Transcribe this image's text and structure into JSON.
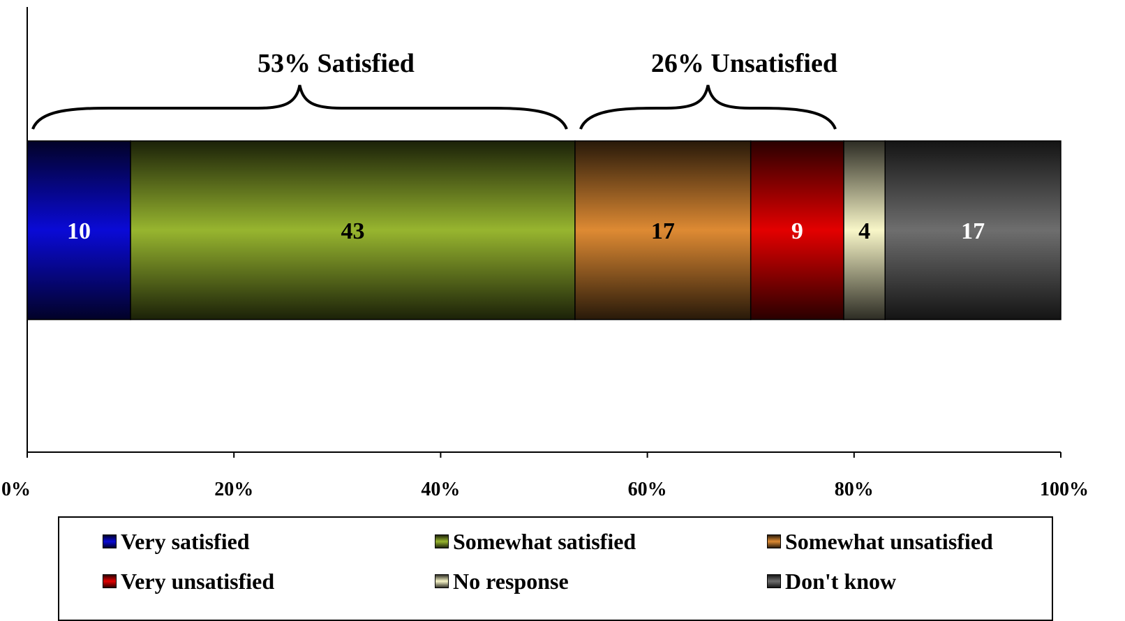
{
  "chart_data": {
    "type": "bar",
    "orientation": "horizontal",
    "stacked": true,
    "xlim": [
      0,
      100
    ],
    "x_ticks": [
      "0%",
      "20%",
      "40%",
      "60%",
      "80%",
      "100%"
    ],
    "series": [
      {
        "name": "Very satisfied",
        "value": 10,
        "label": "10",
        "color": "#0a0ad6",
        "label_color": "#ffffff"
      },
      {
        "name": "Somewhat satisfied",
        "value": 43,
        "label": "43",
        "color": "#97b52f",
        "label_color": "#000000"
      },
      {
        "name": "Somewhat unsatisfied",
        "value": 17,
        "label": "17",
        "color": "#de8a33",
        "label_color": "#000000"
      },
      {
        "name": "Very unsatisfied",
        "value": 9,
        "label": "9",
        "color": "#e30000",
        "label_color": "#ffffff"
      },
      {
        "name": "No response",
        "value": 4,
        "label": "4",
        "color": "#f8f6c8",
        "label_color": "#000000"
      },
      {
        "name": "Don't know",
        "value": 17,
        "label": "17",
        "color": "#6e6e6e",
        "label_color": "#ffffff"
      }
    ],
    "annotations": [
      {
        "text": "53% Satisfied",
        "from": 0,
        "to": 53
      },
      {
        "text": "26% Unsatisfied",
        "from": 53,
        "to": 79
      }
    ],
    "legend_position": "bottom"
  }
}
